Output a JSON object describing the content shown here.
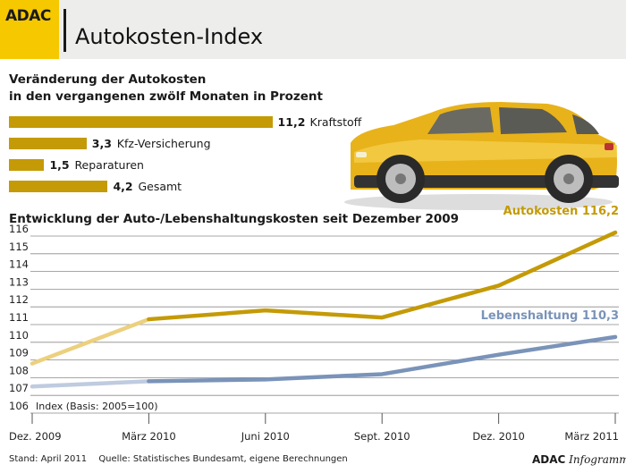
{
  "header": {
    "logo_text": "ADAC",
    "title": "Autokosten-Index"
  },
  "bar_section": {
    "subtitle_line1": "Veränderung der Autokosten",
    "subtitle_line2": "in den vergangenen zwölf Monaten in Prozent"
  },
  "line_section": {
    "heading": "Entwicklung der Auto-/Lebenshaltungskosten seit Dezember 2009",
    "index_note": "Index (Basis: 2005=100)"
  },
  "colors": {
    "gold": "#c49a06",
    "gold_light": "#ecd07e",
    "blue": "#7a93b9",
    "blue_light": "#bfcbdf",
    "grid": "#8a8a8a"
  },
  "chart_data": [
    {
      "type": "bar",
      "orientation": "horizontal",
      "categories": [
        "Kraftstoff",
        "Kfz-Versicherung",
        "Reparaturen",
        "Gesamt"
      ],
      "values": [
        11.2,
        3.3,
        1.5,
        4.2
      ],
      "value_labels": [
        "11,2",
        "3,3",
        "1,5",
        "4,2"
      ]
    },
    {
      "type": "line",
      "x": [
        "Dez. 2009",
        "März 2010",
        "Juni 2010",
        "Sept. 2010",
        "Dez. 2010",
        "März 2011"
      ],
      "x_positions": [
        0,
        3,
        6,
        9,
        12,
        15
      ],
      "ylim": [
        106,
        116
      ],
      "y_ticks": [
        106,
        107,
        108,
        109,
        110,
        111,
        112,
        113,
        114,
        115,
        116
      ],
      "grid": true,
      "series": [
        {
          "name": "Autokosten",
          "end_label": "116,2",
          "color": "#c49a06",
          "points": [
            [
              0,
              108.8
            ],
            [
              3,
              111.3
            ],
            [
              6,
              111.8
            ],
            [
              9,
              111.4
            ],
            [
              12,
              113.2
            ],
            [
              15,
              116.2
            ]
          ]
        },
        {
          "name": "Lebenshaltung",
          "end_label": "110,3",
          "color": "#7a93b9",
          "points": [
            [
              0,
              107.5
            ],
            [
              3,
              107.8
            ],
            [
              6,
              107.9
            ],
            [
              9,
              108.2
            ],
            [
              12,
              109.3
            ],
            [
              15,
              110.3
            ]
          ]
        }
      ]
    }
  ],
  "footer": {
    "stand": "Stand: April 2011",
    "quelle": "Quelle: Statistisches Bundesamt, eigene Berechnungen",
    "brand": "ADAC",
    "brand_sub": "Infogramm"
  }
}
